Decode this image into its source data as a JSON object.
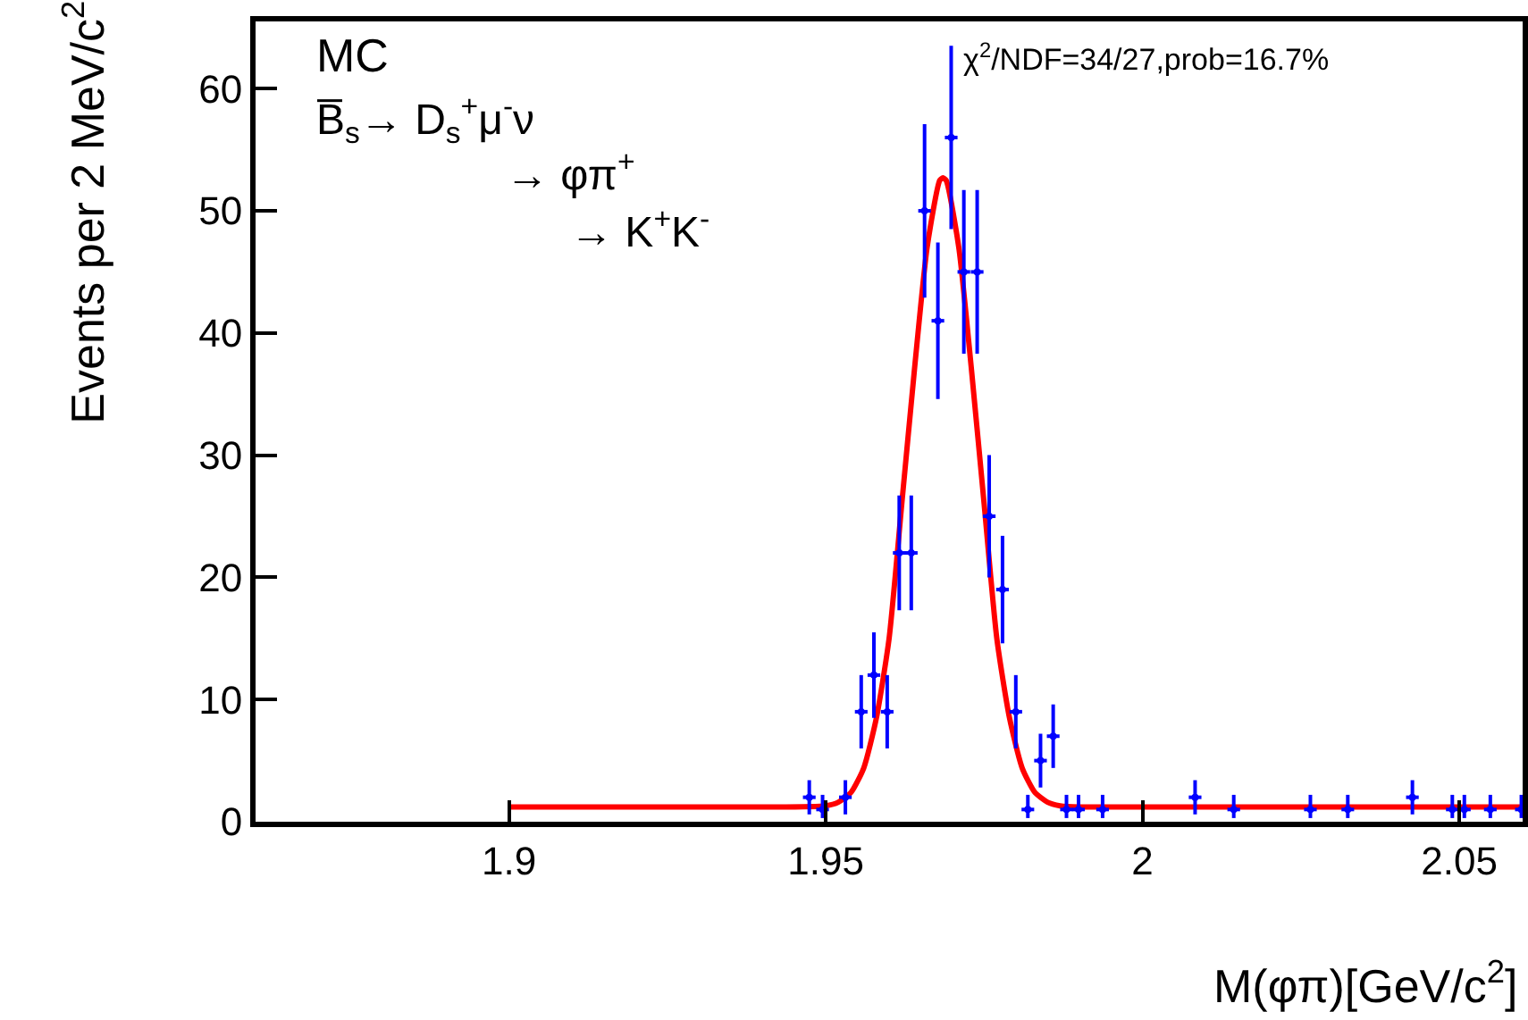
{
  "chart_data": {
    "type": "scatter",
    "xlabel": "M(φπ)[GeV/c$^{2}$]",
    "ylabel": "Events per 2 MeV/c$^{2}$",
    "annotations": [
      "MC",
      "B̅$_{s}$→ D$_{s}$$^{+}$μ$^{-}$ν",
      "→ φπ$^{+}$",
      "→ K$^{+}$K$^{-}$",
      "χ$^{2}$/NDF=34/27,prob=16.7%"
    ],
    "xlim": [
      1.86,
      2.06
    ],
    "ylim": [
      0,
      65.5
    ],
    "xticks": [
      1.9,
      1.95,
      2,
      2.05
    ],
    "yticks": [
      0,
      10,
      20,
      30,
      40,
      50,
      60
    ],
    "series": [
      {
        "color": "#0000ff",
        "x": [
          1.9474,
          1.9495,
          1.9531,
          1.9556,
          1.9576,
          1.9597,
          1.9616,
          1.9635,
          1.9656,
          1.9677,
          1.9698,
          1.9718,
          1.9739,
          1.9758,
          1.9779,
          1.98,
          1.9819,
          1.9839,
          1.9859,
          1.988,
          1.9899,
          1.9937,
          2.0083,
          2.0144,
          2.0265,
          2.0324,
          2.0426,
          2.0489,
          2.0508,
          2.0549,
          2.0598
        ],
        "values": [
          2,
          1,
          2,
          9,
          12,
          9,
          22,
          22,
          50,
          41,
          56,
          45,
          45,
          25,
          19,
          9,
          1,
          5,
          7,
          1,
          1,
          1,
          2,
          1,
          1,
          1,
          2,
          1,
          1,
          1,
          1
        ],
        "errors": [
          1.4,
          [
            0.3,
            2.2
          ],
          1.4,
          3,
          3.5,
          3,
          4.7,
          4.7,
          7.1,
          6.4,
          7.5,
          6.7,
          6.7,
          5,
          4.4,
          3,
          [
            0.3,
            2.2
          ],
          2.2,
          2.6,
          [
            0.3,
            2.2
          ],
          [
            0.3,
            2.2
          ],
          [
            0.3,
            2.2
          ],
          1.4,
          [
            0.3,
            2.2
          ],
          [
            0.3,
            2.2
          ],
          [
            0.3,
            2.2
          ],
          1.4,
          [
            0.3,
            2.2
          ],
          [
            0.3,
            2.2
          ],
          [
            0.3,
            2.2
          ],
          [
            0.3,
            2.2
          ]
        ],
        "xerrors": [
          0.001,
          0.001,
          0.001,
          0.001,
          0.001,
          0.001,
          0.001,
          0.001,
          0.001,
          0.001,
          0.001,
          0.001,
          0.001,
          0.001,
          0.001,
          0.001,
          0.001,
          0.001,
          0.001,
          0.001,
          0.001,
          0.001,
          0.001,
          0.001,
          0.001,
          0.001,
          0.001,
          0.001,
          0.001,
          0.001,
          0.001
        ]
      },
      {
        "type": "line",
        "color": "#ff0000",
        "x": [
          1.9,
          1.94,
          1.95,
          1.952,
          1.954,
          1.956,
          1.958,
          1.96,
          1.962,
          1.964,
          1.966,
          1.968,
          1.9685,
          1.969,
          1.971,
          1.973,
          1.975,
          1.977,
          1.979,
          1.981,
          1.983,
          1.985,
          1.987,
          1.99,
          2.06
        ],
        "values": [
          1.2,
          1.2,
          1.3,
          1.6,
          2.4,
          4.4,
          8.5,
          15,
          26,
          37,
          47,
          52.5,
          52.7,
          52.5,
          47,
          37,
          26,
          15,
          8.5,
          4.4,
          2.4,
          1.6,
          1.3,
          1.2,
          1.2
        ]
      }
    ]
  }
}
